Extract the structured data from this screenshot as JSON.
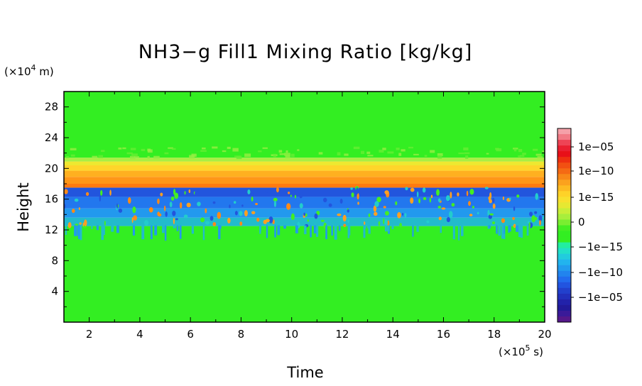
{
  "chart_data": {
    "type": "heatmap",
    "title": "NH3−g Fill1 Mixing Ratio [kg/kg]",
    "xlabel": "Time",
    "ylabel": "Height",
    "x_unit": "(×10",
    "x_unit_exp": "5",
    "x_unit_tail": " s)",
    "y_unit": "(×10",
    "y_unit_exp": "4",
    "y_unit_tail": " m)",
    "xlim": [
      1,
      20
    ],
    "ylim": [
      0,
      30
    ],
    "x_ticks": [
      {
        "value": 2,
        "label": "2"
      },
      {
        "value": 4,
        "label": "4"
      },
      {
        "value": 6,
        "label": "6"
      },
      {
        "value": 8,
        "label": "8"
      },
      {
        "value": 10,
        "label": "10"
      },
      {
        "value": 12,
        "label": "12"
      },
      {
        "value": 14,
        "label": "14"
      },
      {
        "value": 16,
        "label": "16"
      },
      {
        "value": 18,
        "label": "18"
      },
      {
        "value": 20,
        "label": "20"
      }
    ],
    "y_ticks": [
      {
        "value": 4,
        "label": "4"
      },
      {
        "value": 8,
        "label": "8"
      },
      {
        "value": 12,
        "label": "12"
      },
      {
        "value": 16,
        "label": "16"
      },
      {
        "value": 20,
        "label": "20"
      },
      {
        "value": 24,
        "label": "24"
      },
      {
        "value": 28,
        "label": "28"
      }
    ],
    "bands": [
      {
        "y0": 0,
        "y1": 12.5,
        "value": "0",
        "color": "#33ee22"
      },
      {
        "y0": 12.5,
        "y1": 13.6,
        "value": "-1e-13",
        "color": "#22bbcc"
      },
      {
        "y0": 13.6,
        "y1": 14.8,
        "value": "-1e-11",
        "color": "#2299ee"
      },
      {
        "y0": 14.8,
        "y1": 16.3,
        "value": "-1e-09",
        "color": "#2277ee"
      },
      {
        "y0": 16.3,
        "y1": 17.5,
        "value": "-1e-07",
        "color": "#2255dd"
      },
      {
        "y0": 17.5,
        "y1": 18.0,
        "value": "1e-08",
        "color": "#ff7a10"
      },
      {
        "y0": 18.0,
        "y1": 18.9,
        "value": "1e-10",
        "color": "#ff9618"
      },
      {
        "y0": 18.9,
        "y1": 19.7,
        "value": "1e-12",
        "color": "#ffb020"
      },
      {
        "y0": 19.7,
        "y1": 20.4,
        "value": "1e-14",
        "color": "#ffd52a"
      },
      {
        "y0": 20.4,
        "y1": 20.9,
        "value": "1e-15",
        "color": "#eee830"
      },
      {
        "y0": 20.9,
        "y1": 21.4,
        "value": "1e-16",
        "color": "#aaee44"
      },
      {
        "y0": 21.4,
        "y1": 30,
        "value": "0",
        "color": "#33ee22"
      }
    ],
    "colorbar": {
      "labels": [
        "1e−05",
        "1e−10",
        "1e−15",
        "0",
        "−1e−15",
        "−1e−10",
        "−1e−05"
      ],
      "colors_top_to_bottom": [
        "#f5a0a8",
        "#f27a85",
        "#ee4455",
        "#ea2030",
        "#e81018",
        "#ee3010",
        "#f25012",
        "#f56a14",
        "#f88818",
        "#fba21e",
        "#fdbb22",
        "#fed228",
        "#f8e02e",
        "#e6e832",
        "#c8ee38",
        "#a8ee3c",
        "#7aee30",
        "#44ee22",
        "#33ee22",
        "#33ee22",
        "#22eea0",
        "#22e0c8",
        "#22ccdd",
        "#22b4ee",
        "#229cee",
        "#2284ee",
        "#226cee",
        "#2254e0",
        "#2240cc",
        "#2230bb",
        "#2222aa",
        "#221a99",
        "#3a1a99",
        "#55188a"
      ]
    }
  }
}
